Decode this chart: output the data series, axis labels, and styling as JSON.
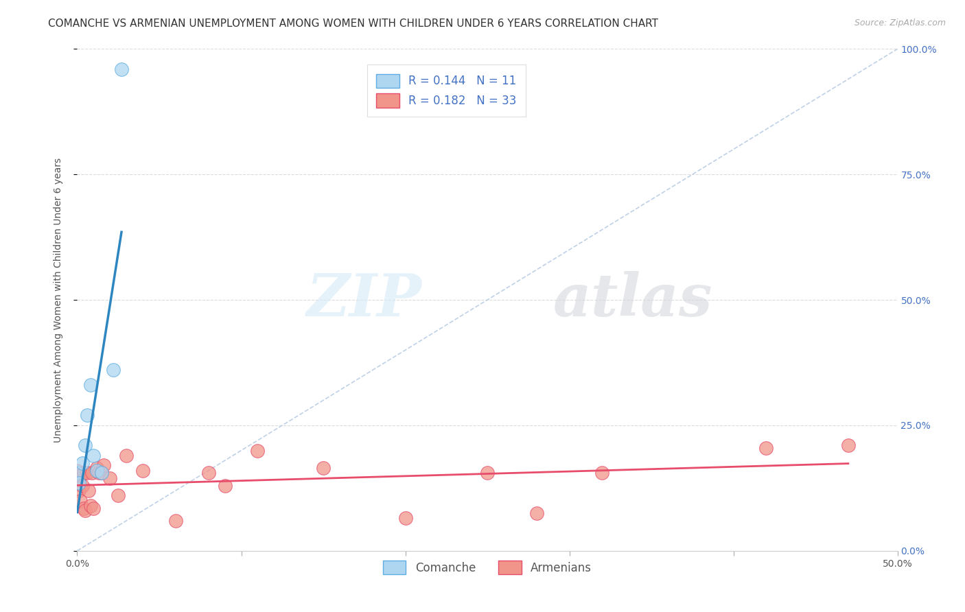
{
  "title": "COMANCHE VS ARMENIAN UNEMPLOYMENT AMONG WOMEN WITH CHILDREN UNDER 6 YEARS CORRELATION CHART",
  "source": "Source: ZipAtlas.com",
  "ylabel": "Unemployment Among Women with Children Under 6 years",
  "xlim": [
    0.0,
    0.5
  ],
  "ylim": [
    0.0,
    1.0
  ],
  "x_minor_ticks": [
    0.0,
    0.1,
    0.2,
    0.3,
    0.4,
    0.5
  ],
  "y_ticks": [
    0.0,
    0.25,
    0.5,
    0.75,
    1.0
  ],
  "y_tick_labels": [
    "",
    "25.0%",
    "50.0%",
    "75.0%",
    "100.0%"
  ],
  "comanche_x": [
    0.0,
    0.001,
    0.003,
    0.005,
    0.006,
    0.008,
    0.01,
    0.012,
    0.015,
    0.022,
    0.027
  ],
  "comanche_y": [
    0.155,
    0.135,
    0.175,
    0.21,
    0.27,
    0.33,
    0.19,
    0.16,
    0.155,
    0.36,
    0.96
  ],
  "armenian_x": [
    0.0,
    0.0,
    0.001,
    0.002,
    0.002,
    0.003,
    0.004,
    0.004,
    0.005,
    0.006,
    0.007,
    0.008,
    0.009,
    0.01,
    0.012,
    0.013,
    0.015,
    0.016,
    0.02,
    0.025,
    0.03,
    0.04,
    0.06,
    0.08,
    0.09,
    0.11,
    0.15,
    0.2,
    0.25,
    0.28,
    0.32,
    0.42,
    0.47
  ],
  "armenian_y": [
    0.14,
    0.16,
    0.12,
    0.1,
    0.15,
    0.13,
    0.085,
    0.155,
    0.08,
    0.155,
    0.12,
    0.09,
    0.155,
    0.085,
    0.165,
    0.155,
    0.155,
    0.17,
    0.145,
    0.11,
    0.19,
    0.16,
    0.06,
    0.155,
    0.13,
    0.2,
    0.165,
    0.065,
    0.155,
    0.075,
    0.155,
    0.205,
    0.21
  ],
  "comanche_color": "#aed6f1",
  "comanche_edge": "#5dade2",
  "armenian_color": "#f1948a",
  "armenian_edge": "#e74c6a",
  "blue_line_color": "#2e86c1",
  "pink_line_color": "#e74c6a",
  "diag_line_color": "#b8cce4",
  "R_comanche": 0.144,
  "N_comanche": 11,
  "R_armenian": 0.182,
  "N_armenian": 33,
  "legend_label_comanche": "Comanche",
  "legend_label_armenian": "Armenians",
  "watermark_zip": "ZIP",
  "watermark_atlas": "atlas",
  "marker_size": 200,
  "title_fontsize": 11,
  "axis_label_fontsize": 10,
  "tick_fontsize": 10,
  "legend_fontsize": 12
}
